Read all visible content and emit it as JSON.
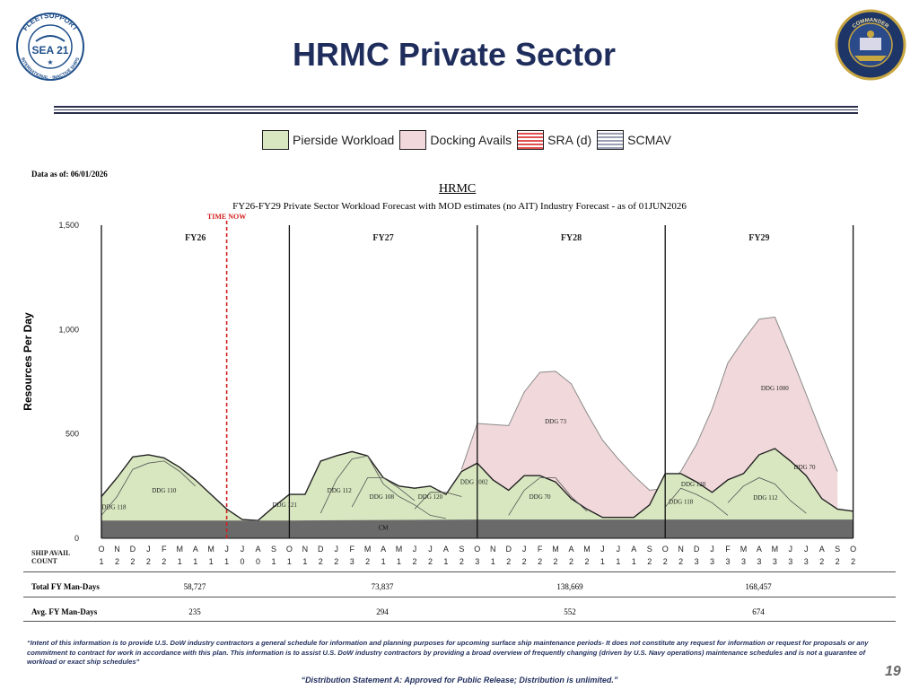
{
  "header": {
    "title": "HRMC Private Sector",
    "logo_left_text": [
      "FLEETSUPPORT",
      "SEA 21",
      "INTERNATIONAL · INACTIVE SHIPS"
    ],
    "logo_right_text": "COMMANDER"
  },
  "legend": [
    {
      "label": "Pierside Workload",
      "key": "pier"
    },
    {
      "label": "Docking Avails",
      "key": "dock"
    },
    {
      "label": "SRA (d)",
      "key": "sra"
    },
    {
      "label": "SCMAV",
      "key": "scmav"
    }
  ],
  "colors": {
    "pierside": "#d8e7c0",
    "docking": "#f1d8da",
    "cm": "#6a6a6a",
    "time_now": "#d0201e",
    "title": "#1f2d5c"
  },
  "chart_data": {
    "type": "area",
    "data_as_of": "Data as of: 06/01/2026",
    "title": "HRMC",
    "subtitle": "FY26-FY29 Private Sector Workload Forecast with MOD estimates (no AIT) Industry Forecast - as of 01JUN2026",
    "ylabel": "Resources Per Day",
    "ylim": [
      0,
      1500
    ],
    "yticks": [
      "1,500",
      "1,000",
      "500",
      "0"
    ],
    "ytick_values": [
      1500,
      1000,
      500,
      0
    ],
    "time_now_label": "TIME NOW",
    "time_now_index": 8,
    "months": [
      "O",
      "N",
      "D",
      "J",
      "F",
      "M",
      "A",
      "M",
      "J",
      "J",
      "A",
      "S",
      "O",
      "N",
      "D",
      "J",
      "F",
      "M",
      "A",
      "M",
      "J",
      "J",
      "A",
      "S",
      "O",
      "N",
      "D",
      "J",
      "F",
      "M",
      "A",
      "M",
      "J",
      "J",
      "A",
      "S",
      "O",
      "N",
      "D",
      "J",
      "F",
      "M",
      "A",
      "M",
      "J",
      "J",
      "A",
      "S",
      "O"
    ],
    "ship_counts": [
      "1",
      "2",
      "2",
      "2",
      "2",
      "1",
      "1",
      "1",
      "1",
      "0",
      "0",
      "1",
      "1",
      "1",
      "2",
      "2",
      "3",
      "2",
      "1",
      "1",
      "2",
      "2",
      "1",
      "2",
      "3",
      "1",
      "2",
      "2",
      "2",
      "2",
      "2",
      "2",
      "1",
      "1",
      "1",
      "2",
      "2",
      "2",
      "3",
      "3",
      "3",
      "3",
      "3",
      "3",
      "3",
      "3",
      "2",
      "2",
      "2"
    ],
    "ship_avail_label_1": "SHIP AVAIL",
    "ship_avail_label_2": "COUNT",
    "fiscal_years": [
      "FY26",
      "FY27",
      "FY28",
      "FY29"
    ],
    "series": [
      {
        "name": "CM",
        "points": [
          [
            0,
            85
          ],
          [
            12,
            85
          ],
          [
            24,
            90
          ],
          [
            36,
            90
          ],
          [
            48,
            90
          ]
        ]
      },
      {
        "name": "Pierside Workload",
        "points": [
          [
            0,
            200
          ],
          [
            1,
            290
          ],
          [
            2,
            390
          ],
          [
            3,
            400
          ],
          [
            4,
            385
          ],
          [
            5,
            340
          ],
          [
            6,
            280
          ],
          [
            7,
            210
          ],
          [
            8,
            140
          ],
          [
            9,
            90
          ],
          [
            10,
            85
          ],
          [
            11,
            150
          ],
          [
            12,
            210
          ],
          [
            13,
            210
          ],
          [
            14,
            370
          ],
          [
            15,
            395
          ],
          [
            16,
            415
          ],
          [
            17,
            395
          ],
          [
            18,
            290
          ],
          [
            19,
            250
          ],
          [
            20,
            240
          ],
          [
            21,
            250
          ],
          [
            22,
            210
          ],
          [
            23,
            320
          ],
          [
            24,
            360
          ],
          [
            25,
            280
          ],
          [
            26,
            230
          ],
          [
            27,
            300
          ],
          [
            28,
            300
          ],
          [
            29,
            270
          ],
          [
            30,
            190
          ],
          [
            31,
            140
          ],
          [
            32,
            100
          ],
          [
            33,
            100
          ],
          [
            34,
            100
          ],
          [
            35,
            160
          ],
          [
            36,
            310
          ],
          [
            37,
            310
          ],
          [
            38,
            270
          ],
          [
            39,
            220
          ],
          [
            40,
            280
          ],
          [
            41,
            310
          ],
          [
            42,
            400
          ],
          [
            43,
            430
          ],
          [
            44,
            370
          ],
          [
            45,
            300
          ],
          [
            46,
            190
          ],
          [
            47,
            140
          ],
          [
            48,
            130
          ]
        ]
      },
      {
        "name": "Docking Avails",
        "points": [
          [
            23,
            330
          ],
          [
            24,
            550
          ],
          [
            25,
            545
          ],
          [
            26,
            540
          ],
          [
            27,
            700
          ],
          [
            28,
            795
          ],
          [
            29,
            800
          ],
          [
            30,
            740
          ],
          [
            31,
            600
          ],
          [
            32,
            470
          ],
          [
            33,
            380
          ],
          [
            34,
            300
          ],
          [
            35,
            230
          ],
          [
            36,
            240
          ],
          [
            37,
            320
          ],
          [
            38,
            450
          ],
          [
            39,
            620
          ],
          [
            40,
            840
          ],
          [
            41,
            950
          ],
          [
            42,
            1050
          ],
          [
            43,
            1060
          ],
          [
            44,
            880
          ],
          [
            45,
            690
          ],
          [
            46,
            500
          ],
          [
            47,
            320
          ]
        ]
      }
    ],
    "annotations": [
      "DDG 118",
      "DDG 110",
      "DDG 121",
      "DDG 112",
      "DDG 108",
      "DDG 120",
      "DDG 1002",
      "DDG 73",
      "DDG 70",
      "DDG 120",
      "DDG 118",
      "DDG 1000",
      "DDG 112",
      "DDG 70",
      "CM"
    ],
    "table": {
      "total_label": "Total FY Man-Days",
      "avg_label": "Avg. FY Man-Days",
      "total": [
        "58,727",
        "73,837",
        "138,669",
        "168,457"
      ],
      "avg": [
        "235",
        "294",
        "552",
        "674"
      ]
    }
  },
  "footer": {
    "disclaimer": "“Intent of this information is to provide U.S. DoW industry contractors a general schedule for information and planning purposes for upcoming surface ship maintenance periods- It does not constitute any request for information or request for proposals or any commitment to contract for work in accordance with this plan.  This information is to assist U.S. DoW industry contractors by providing a broad overview of frequently changing (driven by U.S. Navy operations) maintenance schedules and is not a guarantee of workload or exact ship schedules”",
    "distribution": "“Distribution Statement A: Approved for Public Release; Distribution is unlimited.”",
    "page_number": "19"
  }
}
